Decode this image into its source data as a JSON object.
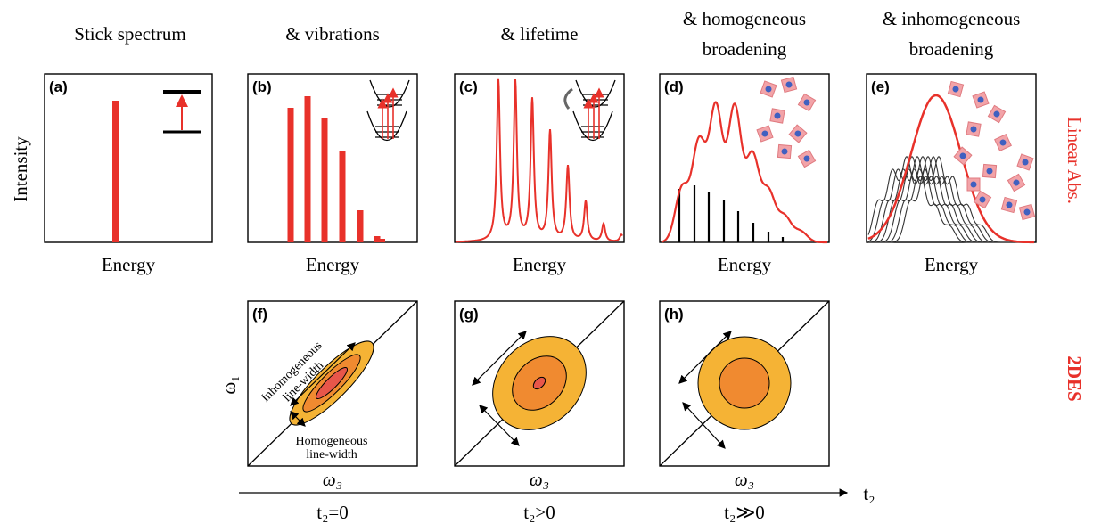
{
  "headers": [
    [
      "Stick spectrum"
    ],
    [
      "& vibrations"
    ],
    [
      "& lifetime"
    ],
    [
      "& homogeneous",
      "broadening"
    ],
    [
      "& inhomogeneous",
      "broadening"
    ]
  ],
  "panels": [
    "(a)",
    "(b)",
    "(c)",
    "(d)",
    "(e)",
    "(f)",
    "(g)",
    "(h)"
  ],
  "y_label": "Intensity",
  "x_labels": [
    "Energy",
    "Energy",
    "Energy",
    "Energy",
    "Energy"
  ],
  "row_labels": [
    "Linear Abs.",
    "2DES"
  ],
  "omega1": "ω₁",
  "omega3": [
    "ω₃",
    "ω₃",
    "ω₃"
  ],
  "annotations": {
    "inhomogeneous": [
      "Inhomogeneous",
      "line-width"
    ],
    "homogeneous": [
      "Homogeneous",
      "line-width"
    ]
  },
  "time_axis": "t₂",
  "time_labels": [
    "t₂=0",
    "t₂>0",
    "t₂≫0"
  ]
}
